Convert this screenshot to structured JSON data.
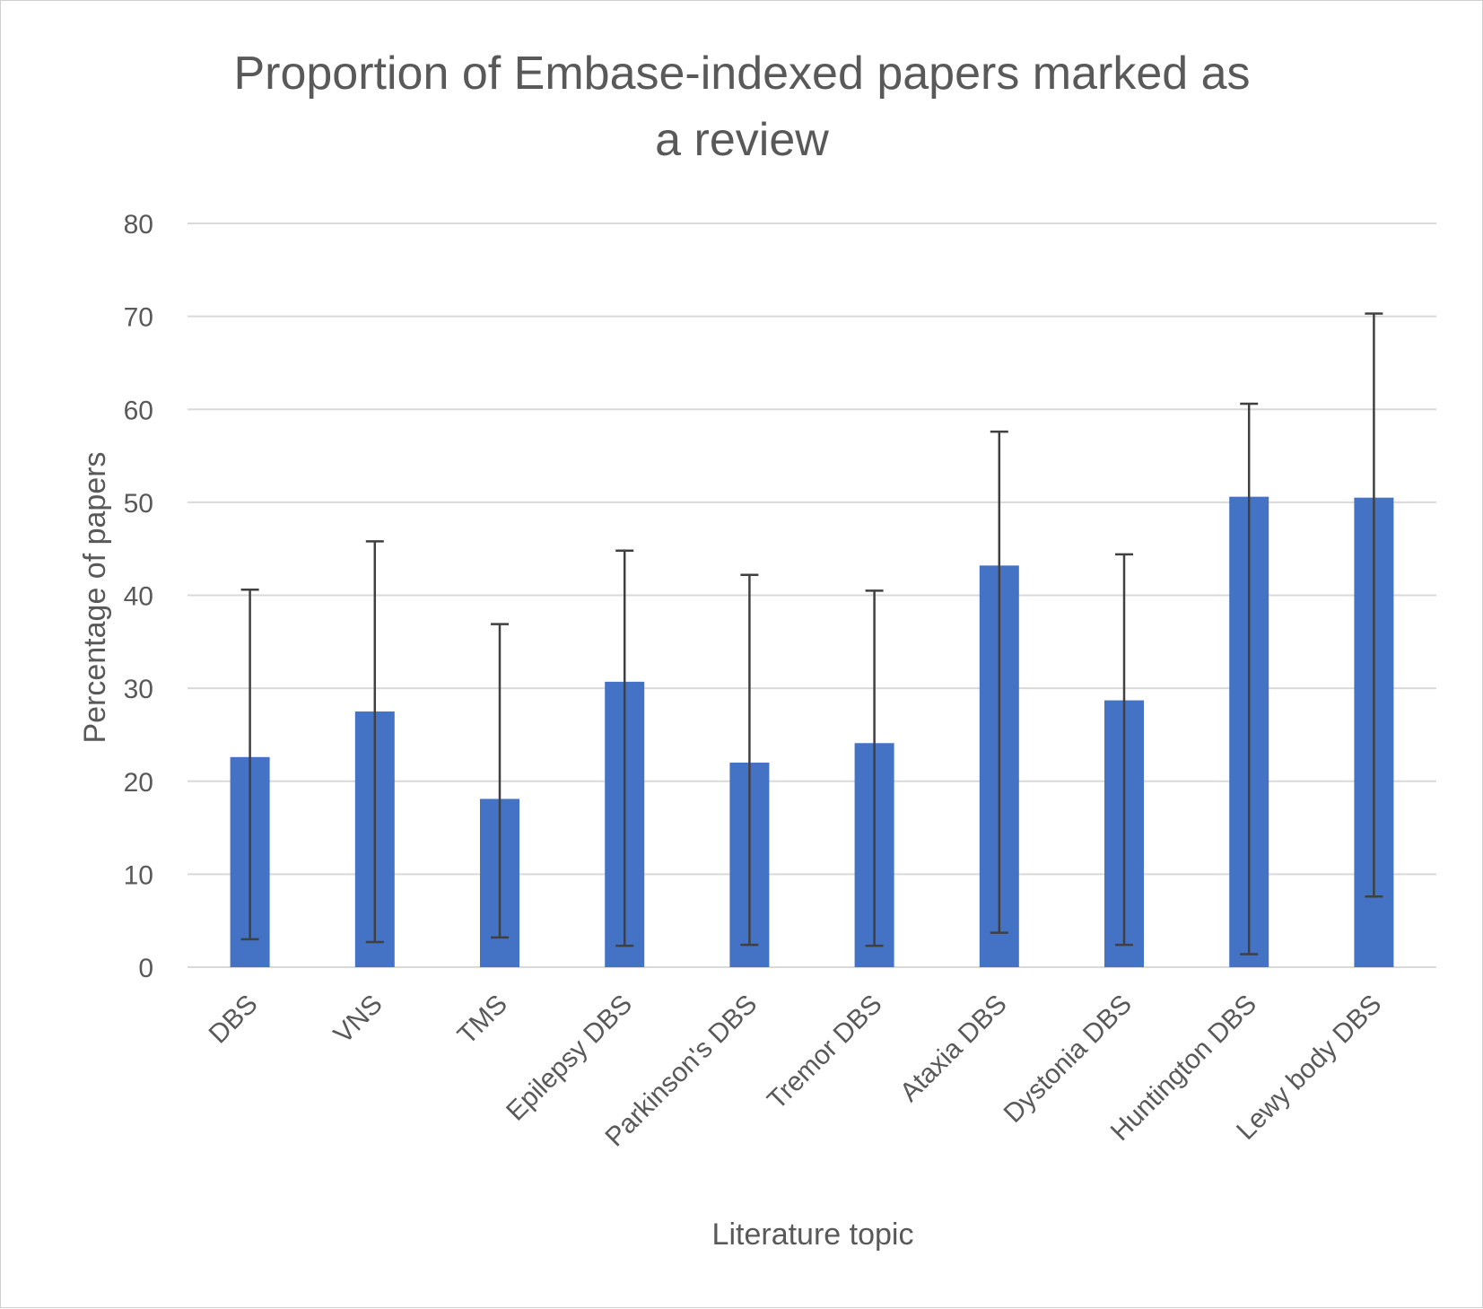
{
  "chart_data": {
    "type": "bar",
    "title_lines": [
      "Proportion of Embase-indexed papers marked as",
      "a review"
    ],
    "xlabel": "Literature topic",
    "ylabel": "Percentage of papers",
    "ylim": [
      0,
      80
    ],
    "yticks": [
      0,
      10,
      20,
      30,
      40,
      50,
      60,
      70,
      80
    ],
    "grid": true,
    "legend": "none",
    "bar_color": "#4472C4",
    "error_bar_color": "#404040",
    "categories": [
      "DBS",
      "VNS",
      "TMS",
      "Epilepsy DBS",
      "Parkinson's DBS",
      "Tremor DBS",
      "Ataxia DBS",
      "Dystonia DBS",
      "Huntington DBS",
      "Lewy body DBS"
    ],
    "values": [
      22.6,
      27.5,
      18.1,
      30.7,
      22.0,
      24.1,
      43.2,
      28.7,
      50.6,
      50.5
    ],
    "error_low": [
      3.0,
      2.7,
      3.2,
      2.3,
      2.4,
      2.3,
      3.7,
      2.4,
      1.4,
      7.6
    ],
    "error_high": [
      40.6,
      45.8,
      36.9,
      44.8,
      42.2,
      40.5,
      57.6,
      44.4,
      60.6,
      70.3
    ]
  }
}
